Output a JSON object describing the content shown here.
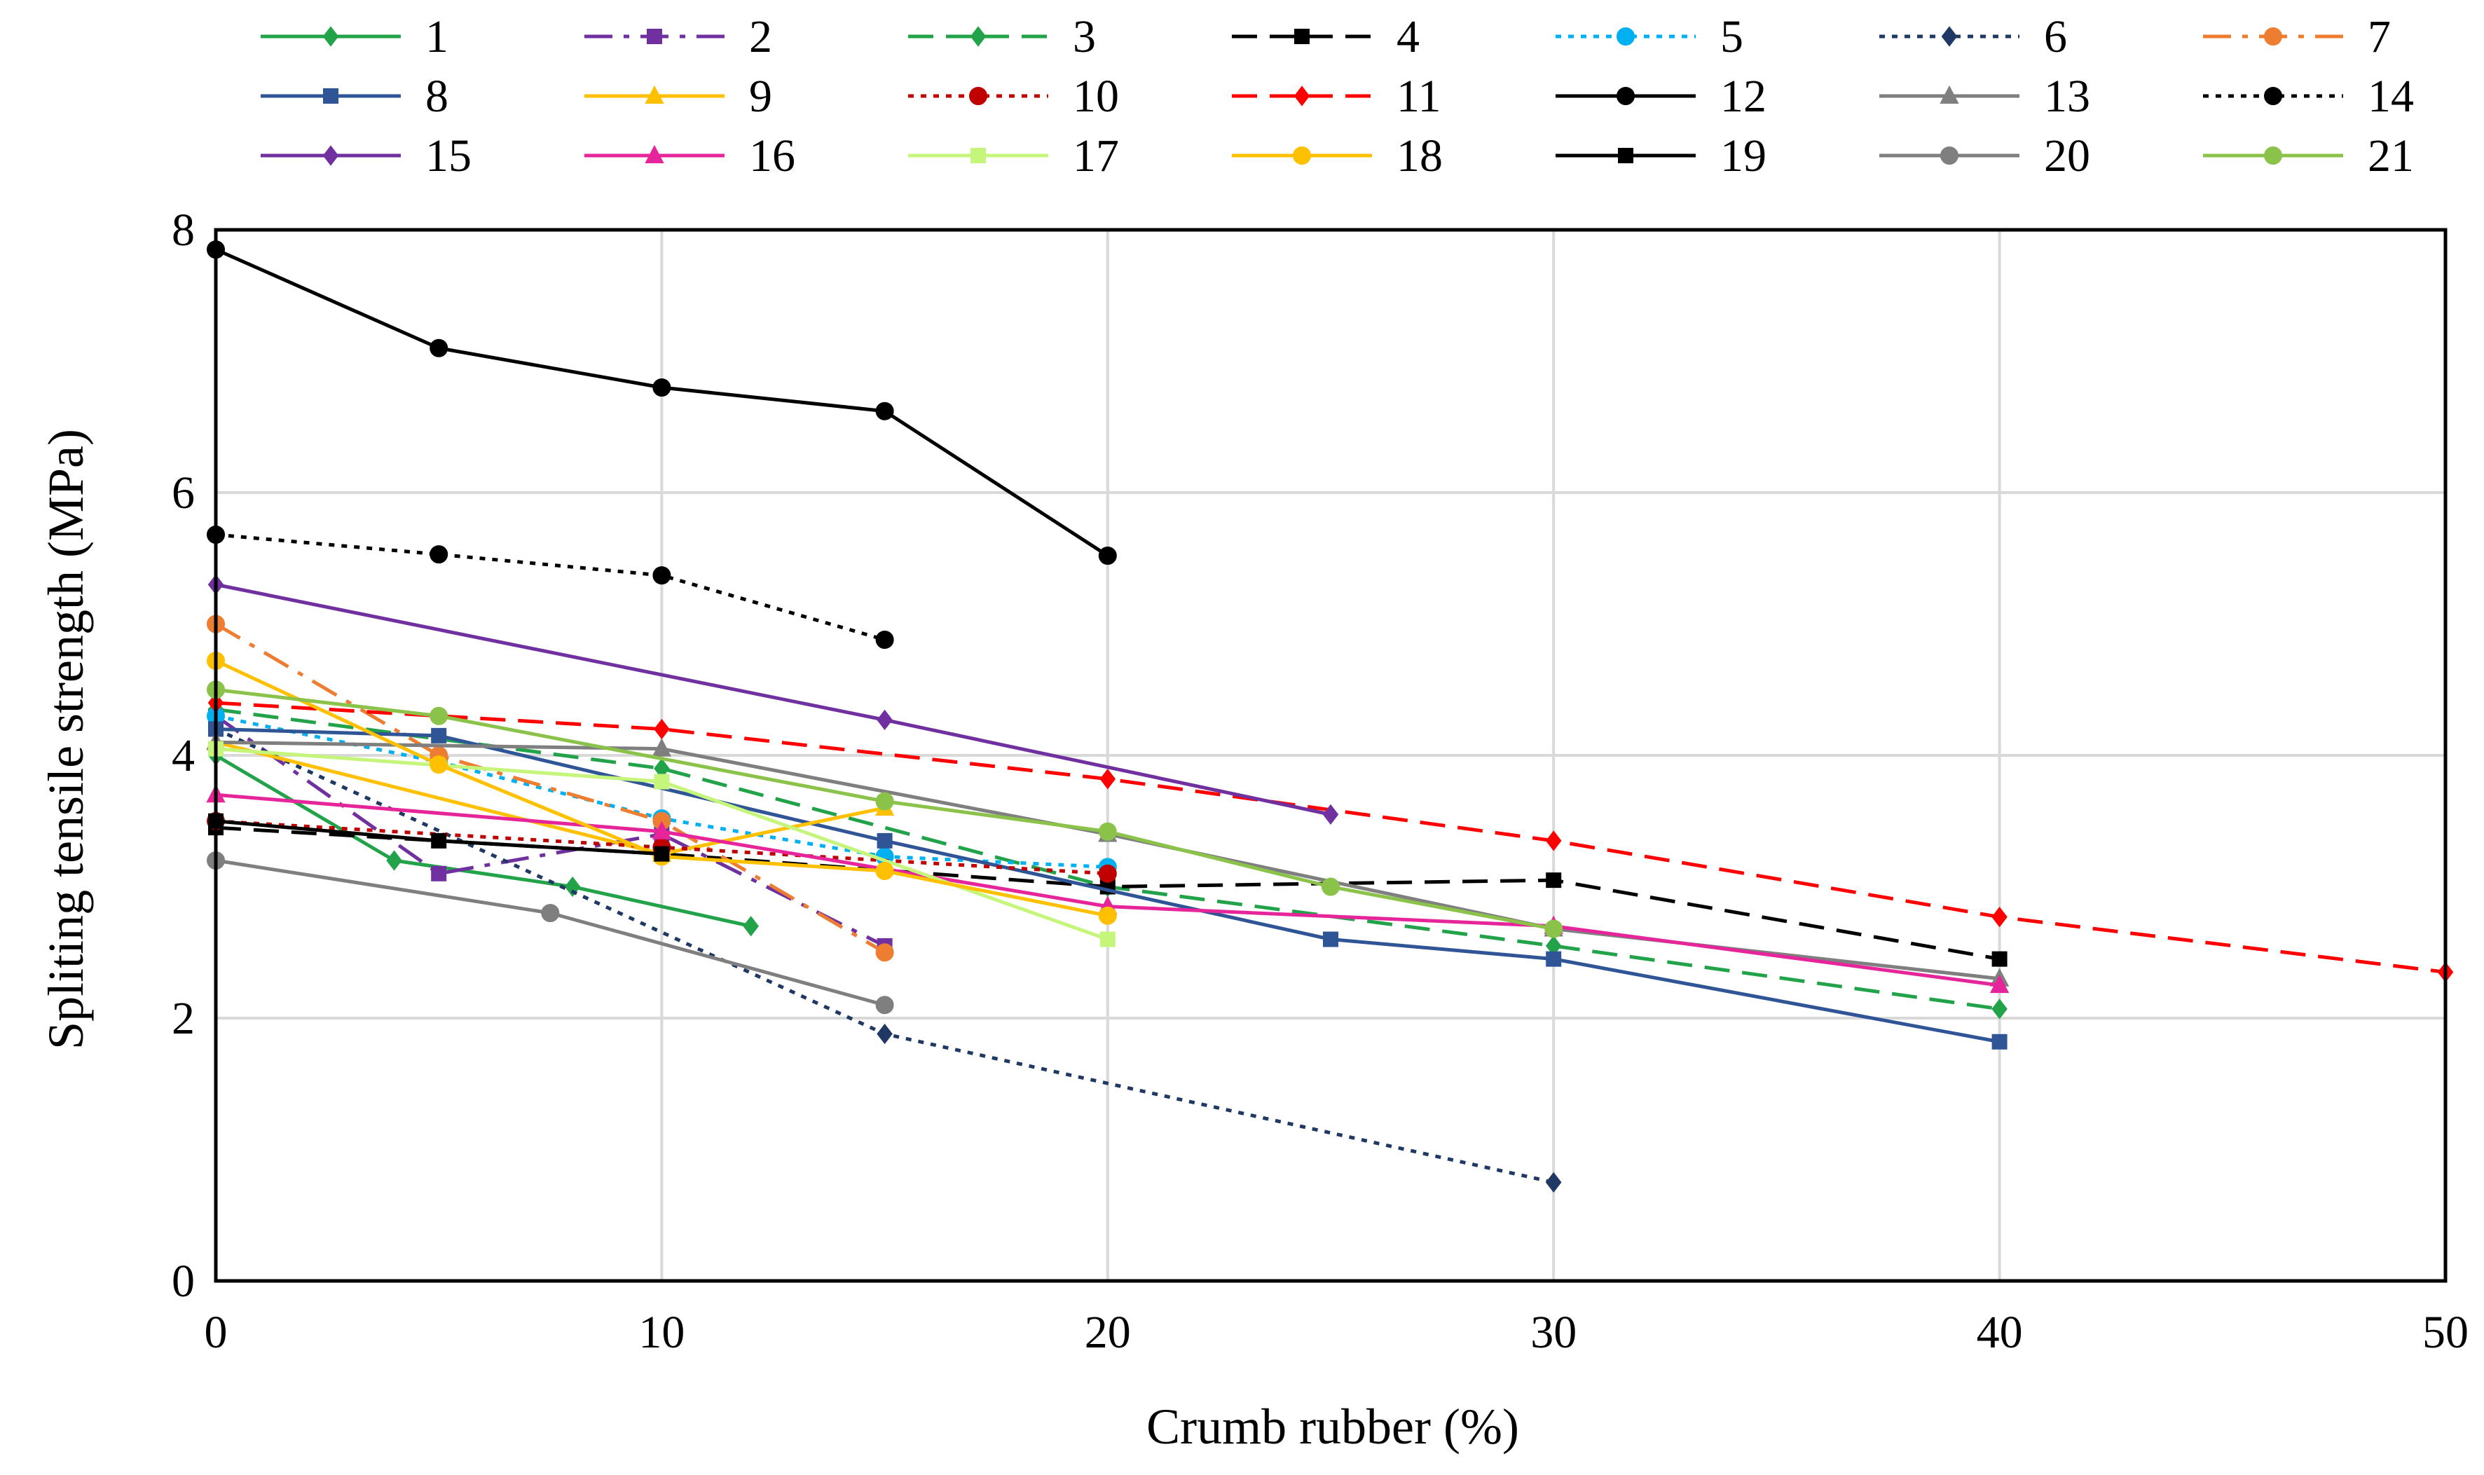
{
  "chart_data": {
    "type": "line",
    "title": "",
    "xlabel": "Crumb rubber (%)",
    "ylabel": "Spliting tensile strength (MPa)",
    "xlim": [
      0,
      50
    ],
    "ylim": [
      0,
      8
    ],
    "xticks": [
      0,
      10,
      20,
      30,
      40,
      50
    ],
    "yticks": [
      0,
      2,
      4,
      6,
      8
    ],
    "grid": true,
    "legend_position": "top",
    "series": [
      {
        "name": "1",
        "color": "#22A34A",
        "dash": "solid",
        "marker": "diamond",
        "x": [
          0,
          4,
          8,
          12
        ],
        "y": [
          4.0,
          3.2,
          3.0,
          2.7
        ]
      },
      {
        "name": "2",
        "color": "#7030A0",
        "dash": "dashdot",
        "marker": "square",
        "x": [
          0,
          5,
          10,
          15
        ],
        "y": [
          4.3,
          3.1,
          3.4,
          2.55
        ]
      },
      {
        "name": "3",
        "color": "#22A34A",
        "dash": "dash",
        "marker": "diamond",
        "x": [
          0,
          10,
          20,
          30,
          40
        ],
        "y": [
          4.35,
          3.9,
          3.0,
          2.55,
          2.07
        ]
      },
      {
        "name": "4",
        "color": "#000000",
        "dash": "dash",
        "marker": "square",
        "x": [
          0,
          10,
          20,
          30,
          40
        ],
        "y": [
          3.45,
          3.25,
          3.0,
          3.05,
          2.45
        ]
      },
      {
        "name": "5",
        "color": "#00B0F0",
        "dash": "dot",
        "marker": "circle",
        "x": [
          0,
          5,
          10,
          15,
          20
        ],
        "y": [
          4.3,
          3.95,
          3.52,
          3.23,
          3.15
        ]
      },
      {
        "name": "6",
        "color": "#1F3864",
        "dash": "dot",
        "marker": "diamond",
        "x": [
          0,
          15,
          30
        ],
        "y": [
          4.2,
          1.88,
          0.75
        ]
      },
      {
        "name": "7",
        "color": "#ED7D31",
        "dash": "dashdot",
        "marker": "circle",
        "x": [
          0,
          5,
          10,
          15
        ],
        "y": [
          5.0,
          4.0,
          3.5,
          2.5
        ]
      },
      {
        "name": "8",
        "color": "#2F5597",
        "dash": "solid",
        "marker": "square",
        "x": [
          0,
          5,
          15,
          25,
          30,
          40
        ],
        "y": [
          4.2,
          4.15,
          3.35,
          2.6,
          2.45,
          1.82
        ]
      },
      {
        "name": "9",
        "color": "#FFC000",
        "dash": "solid",
        "marker": "triangle",
        "x": [
          0,
          10,
          15
        ],
        "y": [
          4.1,
          3.25,
          3.6
        ]
      },
      {
        "name": "10",
        "color": "#C00000",
        "dash": "dot",
        "marker": "circle",
        "x": [
          0,
          10,
          20
        ],
        "y": [
          3.5,
          3.3,
          3.1
        ]
      },
      {
        "name": "11",
        "color": "#FF0000",
        "dash": "dash",
        "marker": "diamond",
        "x": [
          0,
          10,
          20,
          30,
          40,
          50
        ],
        "y": [
          4.4,
          4.2,
          3.82,
          3.35,
          2.77,
          2.35
        ]
      },
      {
        "name": "12",
        "color": "#000000",
        "dash": "solid",
        "marker": "circle",
        "x": [
          0,
          5,
          10,
          15,
          20
        ],
        "y": [
          7.85,
          7.1,
          6.8,
          6.62,
          5.52
        ]
      },
      {
        "name": "13",
        "color": "#7F7F7F",
        "dash": "solid",
        "marker": "triangle",
        "x": [
          0,
          10,
          20,
          30,
          40
        ],
        "y": [
          4.1,
          4.05,
          3.4,
          2.68,
          2.3
        ]
      },
      {
        "name": "14",
        "color": "#000000",
        "dash": "dot",
        "marker": "circle",
        "x": [
          0,
          5,
          10,
          15
        ],
        "y": [
          5.68,
          5.53,
          5.37,
          4.88
        ]
      },
      {
        "name": "15",
        "color": "#7030A0",
        "dash": "solid",
        "marker": "diamond",
        "x": [
          0,
          15,
          25
        ],
        "y": [
          5.3,
          4.27,
          3.55
        ]
      },
      {
        "name": "16",
        "color": "#E6259A",
        "dash": "solid",
        "marker": "triangle",
        "x": [
          0,
          10,
          20,
          30,
          40
        ],
        "y": [
          3.7,
          3.42,
          2.85,
          2.7,
          2.25
        ]
      },
      {
        "name": "17",
        "color": "#C5F57A",
        "dash": "solid",
        "marker": "square",
        "x": [
          0,
          10,
          20
        ],
        "y": [
          4.05,
          3.8,
          2.6
        ]
      },
      {
        "name": "18",
        "color": "#FFC000",
        "dash": "solid",
        "marker": "circle",
        "x": [
          0,
          5,
          10,
          15,
          20
        ],
        "y": [
          4.72,
          3.93,
          3.23,
          3.12,
          2.78
        ]
      },
      {
        "name": "19",
        "color": "#000000",
        "dash": "solid",
        "marker": "square",
        "x": [
          0,
          5,
          10
        ],
        "y": [
          3.5,
          3.35,
          3.25
        ]
      },
      {
        "name": "20",
        "color": "#7F7F7F",
        "dash": "solid",
        "marker": "circle",
        "x": [
          0,
          7.5,
          15
        ],
        "y": [
          3.2,
          2.8,
          2.1
        ]
      },
      {
        "name": "21",
        "color": "#8BC34A",
        "dash": "solid",
        "marker": "circle",
        "x": [
          0,
          5,
          15,
          20,
          25,
          30
        ],
        "y": [
          4.5,
          4.3,
          3.65,
          3.42,
          3.0,
          2.68
        ]
      }
    ]
  }
}
